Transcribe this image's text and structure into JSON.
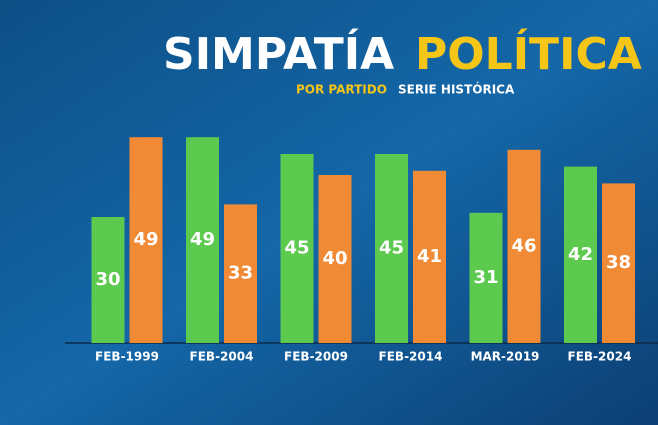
{
  "chart_data": {
    "type": "bar",
    "title": [
      "SIMPATÍA",
      "POLÍTICA"
    ],
    "subtitle": [
      "POR PARTIDO",
      "SERIE HISTÓRICA"
    ],
    "categories": [
      "FEB-1999",
      "FEB-2004",
      "FEB-2009",
      "FEB-2014",
      "MAR-2019",
      "FEB-2024"
    ],
    "series": [
      {
        "color": "#5cc94f",
        "values": [
          30,
          49,
          45,
          45,
          31,
          42
        ]
      },
      {
        "color": "#f08a35",
        "values": [
          49,
          33,
          40,
          41,
          46,
          38
        ]
      }
    ]
  }
}
